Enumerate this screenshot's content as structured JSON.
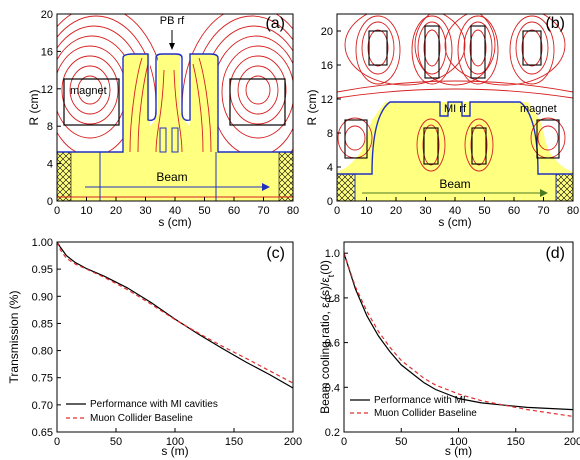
{
  "chart_data": [
    {
      "id": "a",
      "type": "diagram",
      "panel_label": "(a)",
      "xlabel": "s (cm)",
      "ylabel": "R (cm)",
      "xlim": [
        0,
        80
      ],
      "ylim": [
        0,
        20
      ],
      "xticks": [
        0,
        10,
        20,
        30,
        40,
        50,
        60,
        70,
        80
      ],
      "yticks": [
        0,
        4,
        8,
        12,
        16,
        20
      ],
      "annotations": [
        "PB rf",
        "magnet",
        "Beam"
      ],
      "colors": {
        "field_lines": "#d62020",
        "cavity_fill": "#ffff80",
        "cavity_outline": "#2030c0",
        "magnet_box": "#000000"
      }
    },
    {
      "id": "b",
      "type": "diagram",
      "panel_label": "(b)",
      "xlabel": "s (cm)",
      "ylabel": "R (cm)",
      "xlim": [
        0,
        80
      ],
      "ylim": [
        0,
        22
      ],
      "xticks": [
        0,
        10,
        20,
        30,
        40,
        50,
        60,
        70,
        80
      ],
      "yticks": [
        0,
        4,
        8,
        12,
        16,
        20
      ],
      "annotations": [
        "MI rf",
        "magnet",
        "Beam"
      ],
      "colors": {
        "field_lines": "#d62020",
        "cavity_fill": "#ffff80",
        "cavity_outline": "#2030c0",
        "magnet_box": "#000000"
      }
    },
    {
      "id": "c",
      "type": "line",
      "panel_label": "(c)",
      "xlabel": "s (m)",
      "ylabel": "Transmission (%)",
      "xlim": [
        0,
        200
      ],
      "ylim": [
        0.65,
        1.0
      ],
      "xticks": [
        0,
        50,
        100,
        150,
        200
      ],
      "yticks": [
        "0.65",
        "0.70",
        "0.75",
        "0.80",
        "0.85",
        "0.90",
        "0.95",
        "1.00"
      ],
      "legend_position": "bottom-left",
      "series": [
        {
          "name": "Performance with MI cavities",
          "color": "#000000",
          "style": "solid",
          "x": [
            0,
            3,
            8,
            15,
            25,
            40,
            60,
            80,
            100,
            120,
            140,
            160,
            180,
            200
          ],
          "y": [
            1.0,
            0.99,
            0.975,
            0.963,
            0.951,
            0.937,
            0.915,
            0.888,
            0.858,
            0.83,
            0.804,
            0.779,
            0.756,
            0.731
          ]
        },
        {
          "name": "Muon Collider Baseline",
          "color": "#e03030",
          "style": "dashed",
          "x": [
            0,
            3,
            8,
            15,
            25,
            40,
            60,
            80,
            100,
            120,
            140,
            160,
            180,
            200
          ],
          "y": [
            1.0,
            0.985,
            0.97,
            0.96,
            0.95,
            0.935,
            0.912,
            0.885,
            0.857,
            0.832,
            0.808,
            0.786,
            0.763,
            0.74
          ]
        }
      ]
    },
    {
      "id": "d",
      "type": "line",
      "panel_label": "(d)",
      "xlabel": "s (m)",
      "ylabel": "Beam cooling ratio, εt(s)/εt(0)",
      "ylabel_parts": {
        "pre": "Beam cooling ratio, ε",
        "sub1": "t",
        "mid": "(s)/ε",
        "sub2": "t",
        "post": "(0)"
      },
      "xlim": [
        0,
        200
      ],
      "ylim": [
        0.2,
        1.05
      ],
      "xticks": [
        0,
        50,
        100,
        150,
        200
      ],
      "yticks": [
        "0.2",
        "0.4",
        "0.6",
        "0.8",
        "1.0"
      ],
      "legend_position": "bottom-left",
      "series": [
        {
          "name": "Performance with MI",
          "color": "#000000",
          "style": "solid",
          "x": [
            0,
            10,
            20,
            30,
            40,
            50,
            60,
            70,
            80,
            90,
            100,
            120,
            140,
            160,
            180,
            200
          ],
          "y": [
            1.0,
            0.84,
            0.72,
            0.63,
            0.56,
            0.5,
            0.46,
            0.42,
            0.39,
            0.37,
            0.35,
            0.33,
            0.32,
            0.31,
            0.305,
            0.3
          ]
        },
        {
          "name": "Muon Collider Baseline",
          "color": "#e03030",
          "style": "dashed",
          "x": [
            0,
            10,
            20,
            30,
            40,
            50,
            60,
            70,
            80,
            90,
            100,
            120,
            140,
            160,
            180,
            200
          ],
          "y": [
            1.0,
            0.85,
            0.74,
            0.65,
            0.58,
            0.52,
            0.48,
            0.44,
            0.41,
            0.39,
            0.37,
            0.34,
            0.32,
            0.3,
            0.285,
            0.27
          ]
        }
      ]
    }
  ]
}
